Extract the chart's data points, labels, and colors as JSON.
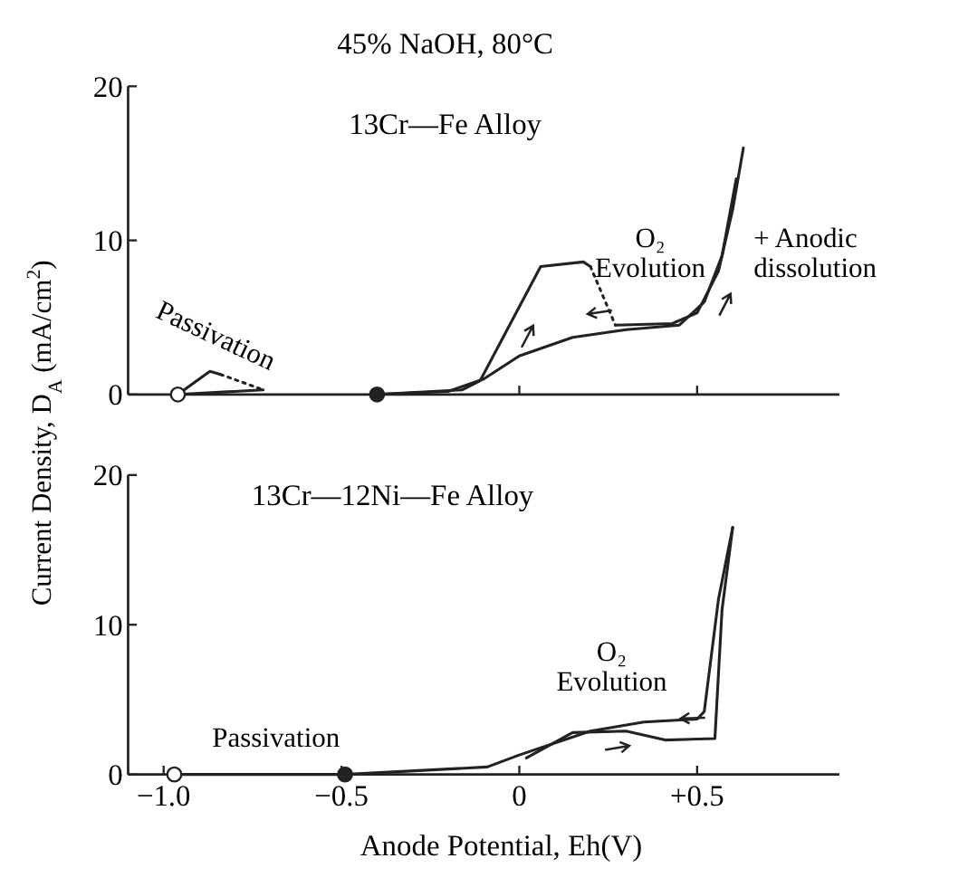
{
  "chart_data": [
    {
      "type": "line",
      "title": "45% NaOH, 80°C",
      "subtitle": "13Cr—Fe Alloy",
      "ylabel": "Current Density, D$_{A}$ (mA/cm$^{2}$)",
      "xlim": [
        -1.1,
        0.9
      ],
      "ylim": [
        0,
        20
      ],
      "yticks": [
        0,
        10,
        20
      ],
      "xticks": [
        {
          "value": 0,
          "label": null
        },
        {
          "value": 0.5,
          "label": null
        }
      ],
      "tick_labels": "y",
      "grid": false,
      "series": [
        {
          "color": "#222222",
          "line_style": "solid",
          "x": [
            -0.96,
            -0.87,
            -0.84
          ],
          "values": [
            0,
            1.5,
            1.3
          ]
        },
        {
          "color": "#222222",
          "line_style": "dotted",
          "x": [
            -0.84,
            -0.72
          ],
          "values": [
            1.3,
            0.3
          ]
        },
        {
          "color": "#222222",
          "line_style": "solid",
          "x": [
            -0.96,
            -0.72
          ],
          "values": [
            0,
            0.3
          ]
        },
        {
          "color": "#222222",
          "line_style": "solid",
          "x": [
            -0.4,
            -0.16,
            -0.11,
            0.06,
            0.18,
            0.2
          ],
          "values": [
            0,
            0.3,
            0.9,
            8.3,
            8.6,
            8.3
          ]
        },
        {
          "color": "#222222",
          "line_style": "dotted",
          "x": [
            0.2,
            0.27
          ],
          "values": [
            8.3,
            4.5
          ]
        },
        {
          "color": "#222222",
          "line_style": "solid",
          "x": [
            0.27,
            0.43,
            0.5,
            0.56,
            0.6,
            0.63
          ],
          "values": [
            4.5,
            4.6,
            5.3,
            8,
            12,
            16
          ]
        },
        {
          "color": "#222222",
          "line_style": "solid",
          "x": [
            0.61,
            0.57,
            0.52,
            0.45,
            0.3,
            0.15,
            0,
            -0.1,
            -0.2,
            -0.4
          ],
          "values": [
            14,
            9,
            6,
            4.5,
            4.2,
            3.7,
            2.5,
            1,
            0.2,
            0
          ]
        },
        {
          "type": "scatter",
          "marker": "circle",
          "color": "#ffffff",
          "x": [
            -0.96
          ],
          "values": [
            0
          ]
        },
        {
          "type": "scatter",
          "marker": "circle",
          "color": "#222222",
          "x": [
            -0.4
          ],
          "values": [
            0
          ]
        }
      ],
      "annotations": [
        "Passivation",
        "O₂\nEvolution",
        "+ Anodic\ndissolution"
      ]
    },
    {
      "type": "line",
      "title": "13Cr—12Ni—Fe Alloy",
      "xlabel": "Anode Potential, Eh(V)",
      "xlim": [
        -1.1,
        0.9
      ],
      "ylim": [
        0,
        20
      ],
      "yticks": [
        0,
        10,
        20
      ],
      "xticks": [
        {
          "value": -1,
          "label": "−1.0"
        },
        {
          "value": -0.5,
          "label": "−0.5"
        },
        0,
        {
          "value": 0.5,
          "label": "+0.5"
        }
      ],
      "grid": false,
      "series": [
        {
          "color": "#222222",
          "line_style": "solid",
          "x": [
            -0.97,
            -0.49,
            -0.09,
            0,
            0.2,
            0.35,
            0.5,
            0.52,
            0.56,
            0.6
          ],
          "values": [
            0,
            0,
            0.5,
            1.3,
            2.9,
            3.5,
            3.7,
            4.2,
            11.7,
            16.5
          ]
        },
        {
          "color": "#222222",
          "line_style": "solid",
          "x": [
            0.6,
            0.57,
            0.55,
            0.41,
            0.3,
            0.15,
            0.02
          ],
          "values": [
            16.5,
            11,
            2.4,
            2.3,
            2.9,
            2.8,
            1.1
          ]
        },
        {
          "type": "scatter",
          "marker": "circle",
          "color": "#ffffff",
          "x": [
            -0.97
          ],
          "values": [
            0
          ]
        },
        {
          "type": "scatter",
          "marker": "circle",
          "color": "#222222",
          "x": [
            -0.49
          ],
          "values": [
            0
          ]
        }
      ],
      "annotations": [
        "Passivation",
        "O₂\nEvolution"
      ]
    }
  ]
}
